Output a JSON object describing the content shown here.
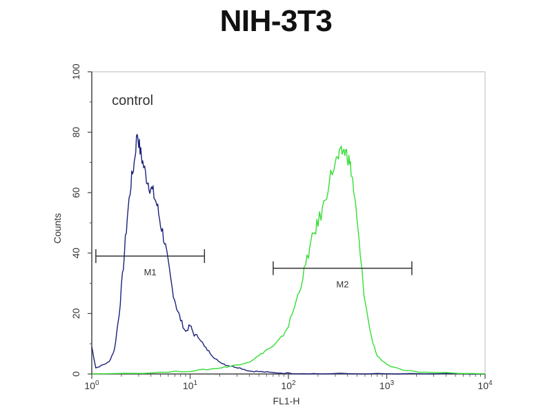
{
  "chart_data": {
    "type": "line",
    "title": "NIH-3T3",
    "xlabel": "FL1-H",
    "ylabel": "Counts",
    "x_scale": "log",
    "xlim": [
      1,
      10000
    ],
    "ylim": [
      0,
      100
    ],
    "x_ticks": [
      {
        "value": 1,
        "base": "10",
        "exp": "0"
      },
      {
        "value": 10,
        "base": "10",
        "exp": "1"
      },
      {
        "value": 100,
        "base": "10",
        "exp": "2"
      },
      {
        "value": 1000,
        "base": "10",
        "exp": "3"
      },
      {
        "value": 10000,
        "base": "10",
        "exp": "4"
      }
    ],
    "y_ticks": [
      0,
      20,
      40,
      60,
      80,
      100
    ],
    "grid": false,
    "annotations": [
      {
        "text": "control",
        "x": 1.6,
        "y": 89
      }
    ],
    "markers": [
      {
        "label": "M1",
        "x_start": 1.1,
        "x_end": 14,
        "y": 39
      },
      {
        "label": "M2",
        "x_start": 70,
        "x_end": 1800,
        "y": 35
      }
    ],
    "series": [
      {
        "color": "#1a1f7a",
        "x": [
          1,
          1.1,
          1.3,
          1.5,
          1.7,
          1.9,
          2.1,
          2.3,
          2.5,
          2.7,
          2.9,
          3.1,
          3.3,
          3.6,
          3.9,
          4.2,
          4.6,
          5.0,
          5.5,
          6.0,
          6.6,
          7.3,
          8.0,
          9.0,
          10,
          11,
          12.5,
          14,
          16,
          18,
          20,
          23,
          27,
          32,
          40,
          50,
          65,
          90,
          130,
          200,
          400,
          1000,
          3000,
          10000
        ],
        "y": [
          9,
          2,
          3,
          4,
          8,
          20,
          36,
          52,
          63,
          70,
          80,
          74,
          70,
          65,
          62,
          60,
          56,
          50,
          44,
          36,
          28,
          22,
          18,
          14,
          16,
          13,
          12,
          9,
          7,
          5,
          4,
          3,
          2.5,
          2,
          1,
          0.8,
          0.5,
          0.3,
          0.2,
          0.1,
          0.1,
          0,
          0,
          0
        ]
      },
      {
        "color": "#33dd33",
        "x": [
          1,
          5,
          10,
          15,
          20,
          25,
          30,
          40,
          50,
          60,
          70,
          85,
          100,
          120,
          140,
          160,
          180,
          200,
          230,
          260,
          300,
          330,
          360,
          390,
          420,
          450,
          500,
          550,
          600,
          700,
          800,
          1000,
          1500,
          3000,
          10000
        ],
        "y": [
          0,
          0.5,
          1,
          1.5,
          2,
          2.5,
          3,
          4,
          6,
          8,
          9,
          12,
          16,
          24,
          32,
          40,
          46,
          50,
          56,
          64,
          70,
          72,
          74,
          73,
          70,
          64,
          50,
          36,
          24,
          12,
          6,
          3,
          1,
          0.5,
          0
        ]
      }
    ]
  }
}
